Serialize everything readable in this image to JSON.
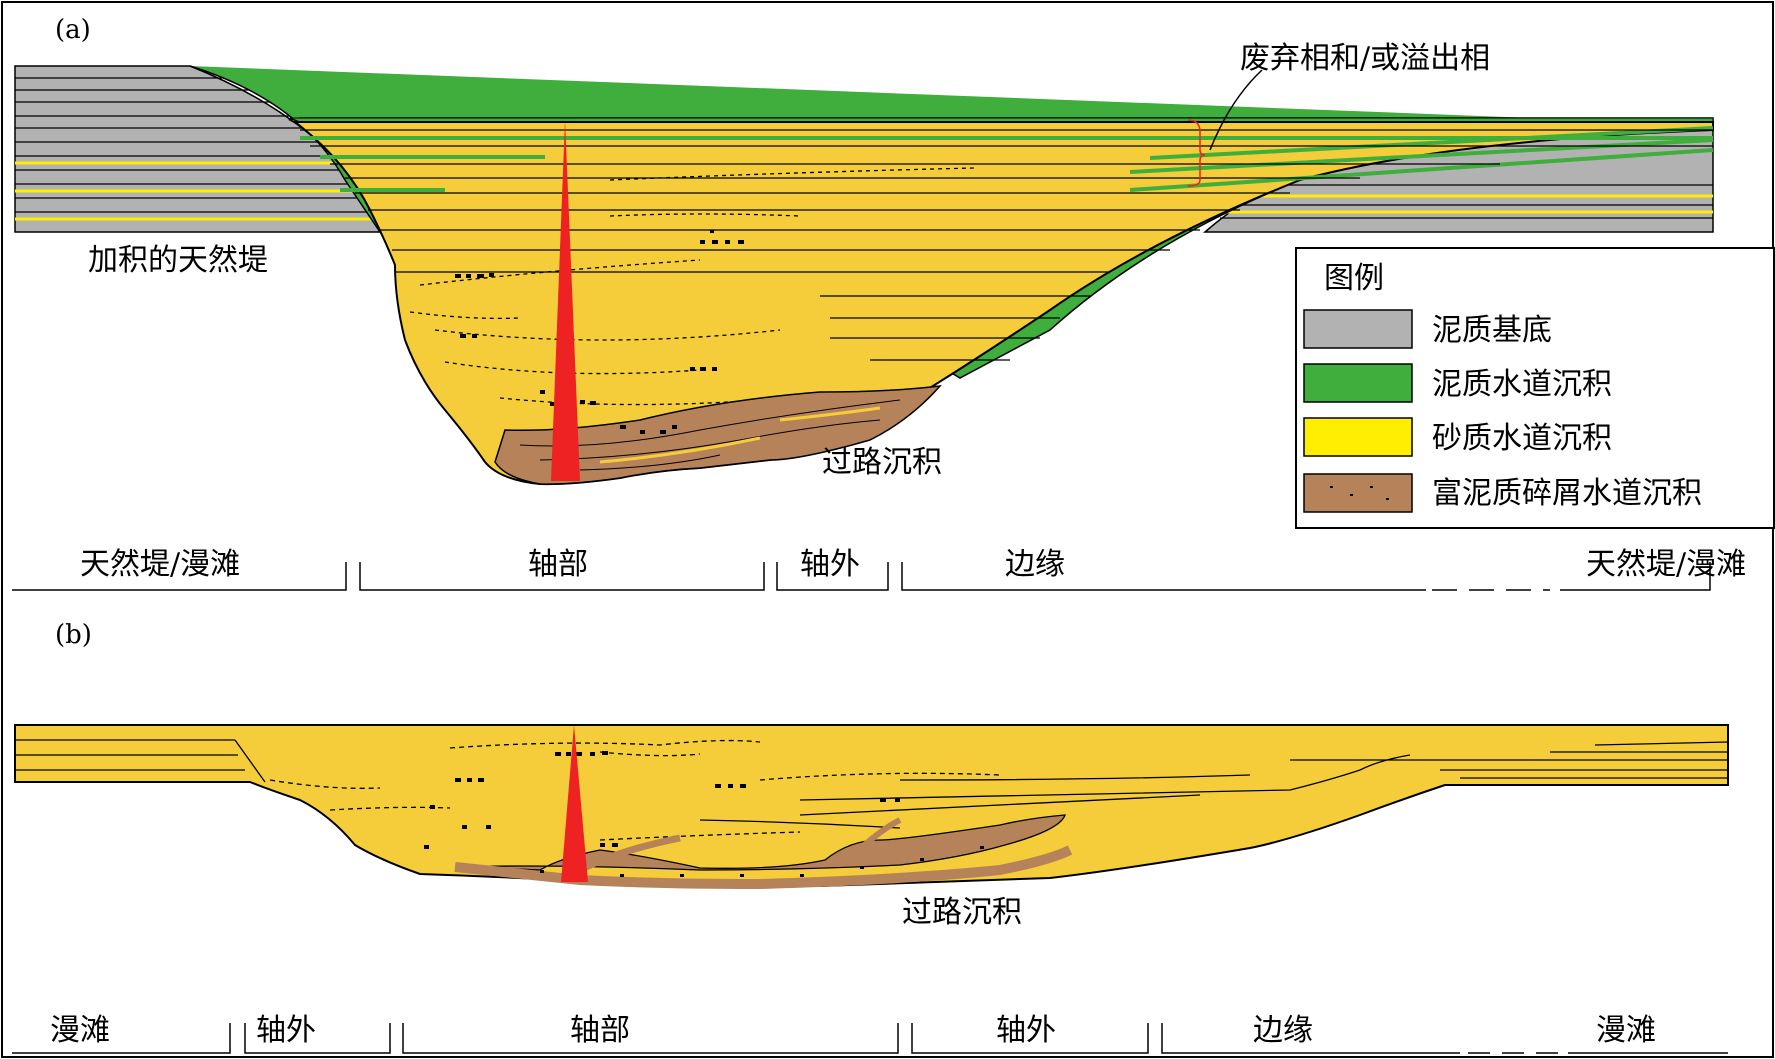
{
  "panel_a": {
    "label": "(a)",
    "annotation_abandon": "废弃相和/或溢出相",
    "annotation_levee": "加积的天然堤",
    "annotation_bypass": "过路沉积",
    "zones": [
      "天然堤/漫滩",
      "轴部",
      "轴外",
      "边缘",
      "天然堤/漫滩"
    ]
  },
  "panel_b": {
    "label": "(b)",
    "annotation_bypass": "过路沉积",
    "zones": [
      "漫滩",
      "轴外",
      "轴部",
      "轴外",
      "边缘",
      "漫滩"
    ]
  },
  "legend": {
    "title": "图例",
    "items": [
      {
        "label": "泥质基底",
        "color": "#b2b2b2"
      },
      {
        "label": "泥质水道沉积",
        "color": "#3fae3c"
      },
      {
        "label": "砂质水道沉积",
        "color": "#ffee00"
      },
      {
        "label": "富泥质碎屑水道沉积",
        "color": "#b5825a"
      }
    ]
  },
  "colors": {
    "sand_fill": "#f5cd3a",
    "mud_base": "#b2b2b2",
    "mud_channel": "#3fae3c",
    "debris": "#b5825a",
    "well": "#ee2222"
  }
}
